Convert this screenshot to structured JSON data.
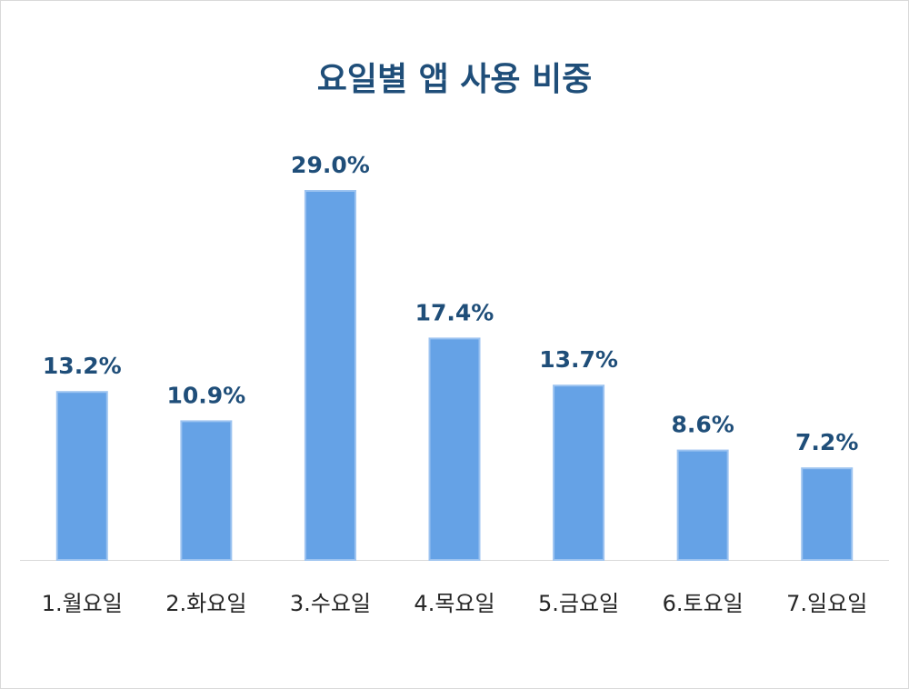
{
  "chart_data": {
    "type": "bar",
    "title": "요일별 앱 사용 비중",
    "categories": [
      "1.월요일",
      "2.화요일",
      "3.수요일",
      "4.목요일",
      "5.금요일",
      "6.토요일",
      "7.일요일"
    ],
    "values": [
      13.2,
      10.9,
      29.0,
      17.4,
      13.7,
      8.6,
      7.2
    ],
    "data_labels": [
      "13.2%",
      "10.9%",
      "29.0%",
      "17.4%",
      "13.7%",
      "8.6%",
      "7.2%"
    ],
    "unit": "%",
    "xlabel": "",
    "ylabel": "",
    "ylim": [
      0,
      35
    ],
    "grid": false,
    "bar_color": "#65a2e6",
    "bar_edge_color": "#9cc3f0",
    "label_color": "#1f4e79",
    "title_color": "#1f4e79"
  }
}
